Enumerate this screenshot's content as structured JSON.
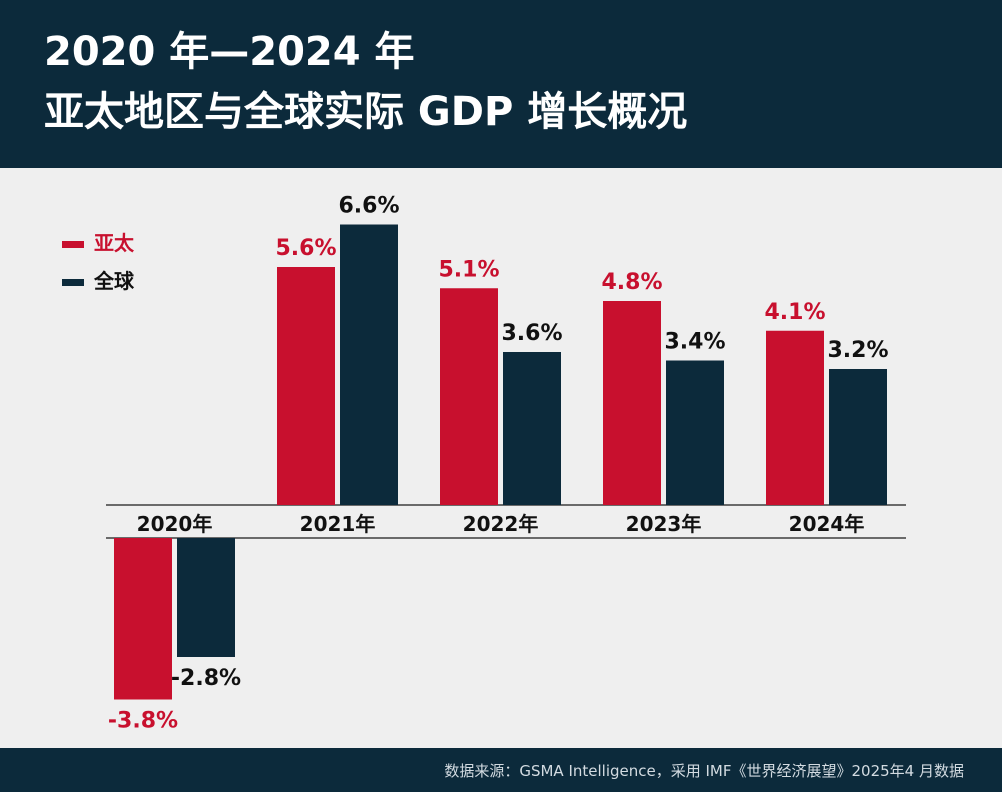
{
  "header": {
    "title_line1": "2020 年—2024 年",
    "title_line2": "亚太地区与全球实际 GDP 增长概况"
  },
  "footer": {
    "source": "数据来源：GSMA Intelligence，采用 IMF《世界经济展望》2025年4 月数据"
  },
  "colors": {
    "header_bg": "#0c2a3b",
    "apac": "#c8102e",
    "global": "#0c2a3b",
    "background": "#efefef"
  },
  "chart_data": {
    "type": "bar",
    "title": "2020 年—2024 年 亚太地区与全球实际 GDP 增长概况",
    "categories": [
      "2020年",
      "2021年",
      "2022年",
      "2023年",
      "2024年"
    ],
    "series": [
      {
        "name": "亚太",
        "color": "#c8102e",
        "values": [
          -3.8,
          5.6,
          5.1,
          4.8,
          4.1
        ],
        "labels": [
          "-3.8%",
          "5.6%",
          "5.1%",
          "4.8%",
          "4.1%"
        ]
      },
      {
        "name": "全球",
        "color": "#0c2a3b",
        "values": [
          -2.8,
          6.6,
          3.6,
          3.4,
          3.2
        ],
        "labels": [
          "-2.8%",
          "6.6%",
          "3.6%",
          "3.4%",
          "3.2%"
        ]
      }
    ],
    "legend": "top-left",
    "grid": false,
    "ylim": [
      -3.8,
      6.6
    ]
  }
}
